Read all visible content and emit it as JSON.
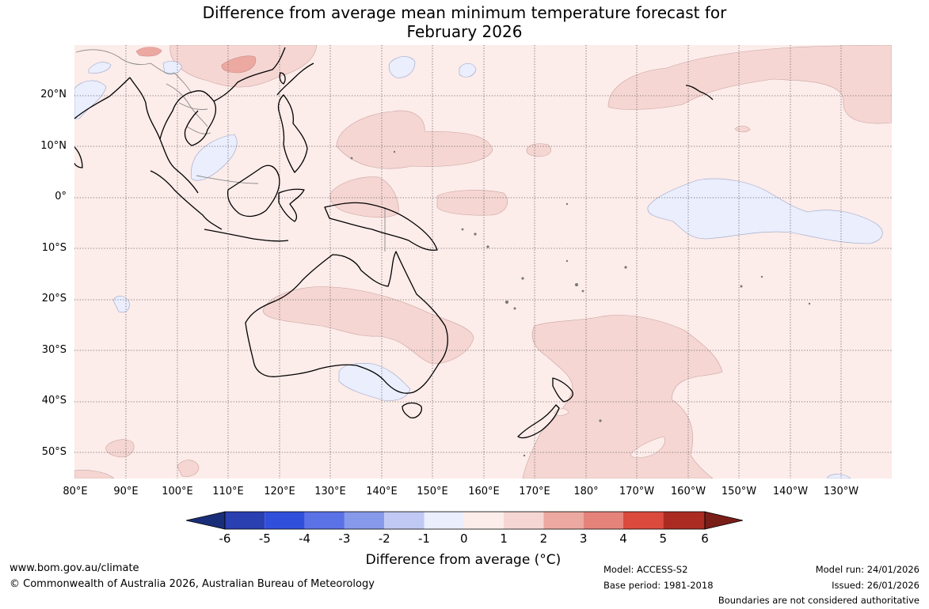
{
  "title": {
    "line1": "Difference from average mean minimum temperature forecast for",
    "line2": "February 2026"
  },
  "map": {
    "lat_labels": [
      "20°N",
      "10°N",
      "0°",
      "10°S",
      "20°S",
      "30°S",
      "40°S",
      "50°S"
    ],
    "lon_labels": [
      "80°E",
      "90°E",
      "100°E",
      "110°E",
      "120°E",
      "130°E",
      "140°E",
      "150°E",
      "160°E",
      "170°E",
      "180°",
      "170°W",
      "160°W",
      "150°W",
      "140°W",
      "130°W"
    ]
  },
  "colorbar": {
    "title": "Difference from average (°C)",
    "tick_labels": [
      "-6",
      "-5",
      "-4",
      "-3",
      "-2",
      "-1",
      "0",
      "1",
      "2",
      "3",
      "4",
      "5",
      "6"
    ],
    "colors": [
      "#1a2d78",
      "#2a3fb0",
      "#3050dc",
      "#5a72e6",
      "#8699ea",
      "#c0c8f4",
      "#eaeefd",
      "#fcecea",
      "#f5d6d3",
      "#eca9a1",
      "#e5837a",
      "#da4a3d",
      "#ab2b22",
      "#7a1e18"
    ]
  },
  "footer": {
    "website": "www.bom.gov.au/climate",
    "copyright": "© Commonwealth of Australia 2026, Australian Bureau of Meteorology",
    "model": "Model: ACCESS-S2",
    "base_period": "Base period: 1981-2018",
    "model_run": "Model run: 24/01/2026",
    "issued": "Issued: 26/01/2026",
    "disclaimer": "Boundaries are not considered authoritative"
  }
}
